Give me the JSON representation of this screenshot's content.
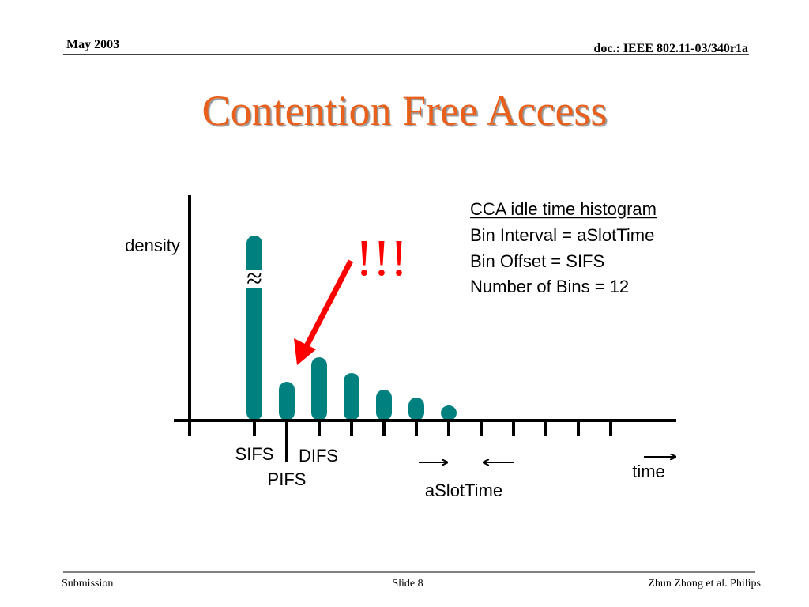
{
  "header": {
    "date": "May 2003",
    "doc": "doc.: IEEE 802.11-03/340r1a"
  },
  "title": "Contention Free Access",
  "diagram": {
    "y_label": "density",
    "break_mark": "≈",
    "alert": "!!!",
    "legend": [
      "CCA idle time histogram",
      "Bin Interval = aSlotTime",
      "Bin Offset = SIFS",
      "Number of Bins = 12"
    ],
    "x_labels": {
      "sifs": "SIFS",
      "difs": "DIFS",
      "pifs": "PIFS",
      "slot": "aSlotTime",
      "time": "time"
    }
  },
  "footer": {
    "left": "Submission",
    "center": "Slide 8",
    "right": "Zhun Zhong et al. Philips"
  }
}
